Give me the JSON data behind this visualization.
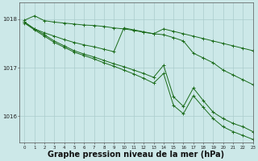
{
  "background_color": "#cce8e8",
  "grid_color": "#aacccc",
  "line_color": "#1a6b1a",
  "xlabel": "Graphe pression niveau de la mer (hPa)",
  "xlabel_fontsize": 7,
  "ylim": [
    1015.45,
    1018.35
  ],
  "xlim": [
    -0.5,
    23
  ],
  "yticks": [
    1016,
    1017,
    1018
  ],
  "ytick_labels": [
    "1016",
    "1017",
    "1018"
  ],
  "xticks": [
    0,
    1,
    2,
    3,
    4,
    5,
    6,
    7,
    8,
    9,
    10,
    11,
    12,
    13,
    14,
    15,
    16,
    17,
    18,
    19,
    20,
    21,
    22,
    23
  ],
  "series": [
    [
      1017.98,
      1018.07,
      1017.97,
      1017.94,
      1017.92,
      1017.9,
      1017.88,
      1017.87,
      1017.85,
      1017.82,
      1017.8,
      1017.77,
      1017.73,
      1017.7,
      1017.8,
      1017.75,
      1017.7,
      1017.65,
      1017.6,
      1017.55,
      1017.5,
      1017.45,
      1017.4,
      1017.35
    ],
    [
      1017.94,
      1017.8,
      1017.72,
      1017.65,
      1017.58,
      1017.52,
      1017.47,
      1017.43,
      1017.38,
      1017.33,
      1017.82,
      1017.78,
      1017.74,
      1017.7,
      1017.68,
      1017.62,
      1017.55,
      1017.3,
      1017.2,
      1017.1,
      1016.95,
      1016.85,
      1016.75,
      1016.65
    ],
    [
      1017.94,
      1017.8,
      1017.68,
      1017.55,
      1017.45,
      1017.35,
      1017.28,
      1017.22,
      1017.15,
      1017.08,
      1017.02,
      1016.95,
      1016.88,
      1016.8,
      1017.05,
      1016.4,
      1016.2,
      1016.58,
      1016.32,
      1016.08,
      1015.95,
      1015.85,
      1015.78,
      1015.68
    ],
    [
      1017.92,
      1017.78,
      1017.65,
      1017.52,
      1017.42,
      1017.32,
      1017.25,
      1017.18,
      1017.1,
      1017.03,
      1016.95,
      1016.87,
      1016.78,
      1016.68,
      1016.88,
      1016.22,
      1016.05,
      1016.42,
      1016.18,
      1015.95,
      1015.78,
      1015.68,
      1015.6,
      1015.52
    ]
  ]
}
